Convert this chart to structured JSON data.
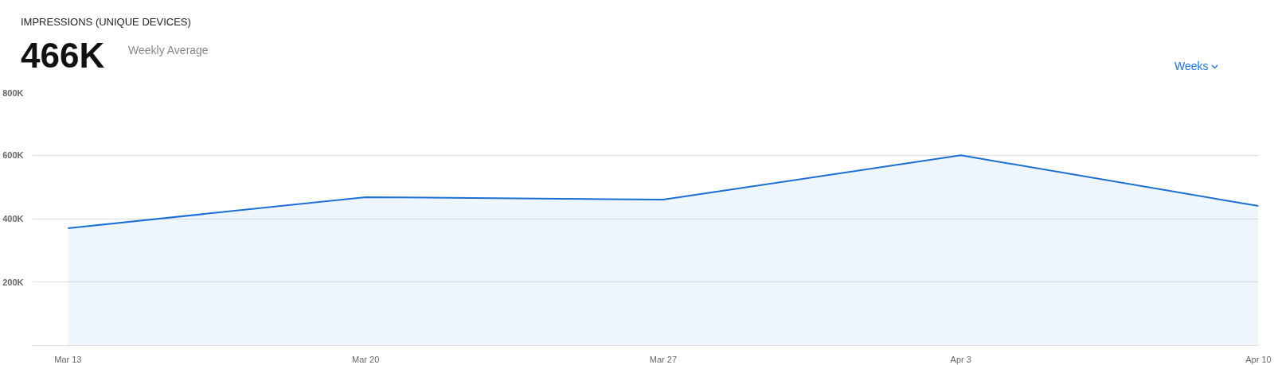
{
  "chart_data": {
    "type": "area",
    "title": "IMPRESSIONS (UNIQUE DEVICES)",
    "annotations": [
      "466K",
      "Weekly Average",
      "Weeks"
    ],
    "categories": [
      "Mar 13",
      "Mar 20",
      "Mar 27",
      "Apr 3",
      "Apr 10"
    ],
    "series": [
      {
        "color": "#1a6fd4",
        "values": [
          370000,
          468000,
          460000,
          600000,
          440000
        ]
      }
    ],
    "ylim": [
      0,
      800000
    ],
    "yticks": [
      {
        "value": 0,
        "label": null
      },
      {
        "value": 200000,
        "label": "200K"
      },
      {
        "value": 400000,
        "label": "400K"
      },
      {
        "value": 600000,
        "label": "600K"
      },
      {
        "value": 800000,
        "label": "800K"
      }
    ],
    "grid": "y"
  }
}
